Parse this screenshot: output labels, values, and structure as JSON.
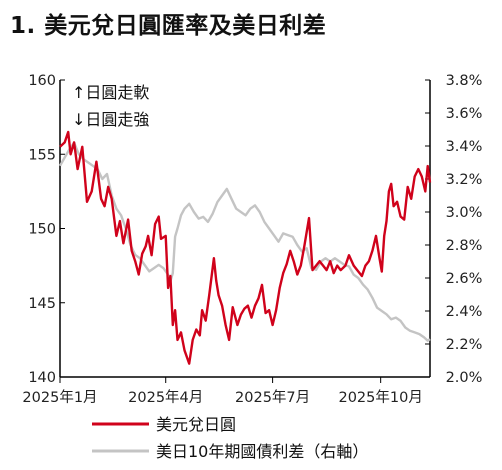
{
  "title": "1. 美元兌日圓匯率及美日利差",
  "chart_data": {
    "type": "line",
    "x_ticks": [
      "2025年1月",
      "2025年4月",
      "2025年7月",
      "2025年10月"
    ],
    "x_range": [
      "2025-01-01",
      "2025-11-12"
    ],
    "y_left": {
      "min": 140,
      "max": 160,
      "ticks": [
        "140",
        "145",
        "150",
        "155",
        "160"
      ]
    },
    "y_right": {
      "min": 2.0,
      "max": 3.8,
      "ticks": [
        "2.0%",
        "2.2%",
        "2.4%",
        "2.6%",
        "2.8%",
        "3.0%",
        "3.2%",
        "3.4%",
        "3.6%",
        "3.8%"
      ]
    },
    "annotations": [
      "↑日圓走軟",
      "↓日圓走強"
    ],
    "colors": {
      "usdjpy": "#d0021b",
      "spread": "#c4c4c4"
    },
    "series": [
      {
        "name": "美元兌日圓",
        "axis": "left",
        "points": [
          [
            "2025-01-01",
            155.5
          ],
          [
            "2025-01-05",
            155.8
          ],
          [
            "2025-01-08",
            156.5
          ],
          [
            "2025-01-10",
            155.0
          ],
          [
            "2025-01-13",
            155.8
          ],
          [
            "2025-01-16",
            154.0
          ],
          [
            "2025-01-20",
            155.5
          ],
          [
            "2025-01-24",
            151.8
          ],
          [
            "2025-01-28",
            152.5
          ],
          [
            "2025-02-01",
            154.5
          ],
          [
            "2025-02-05",
            152.0
          ],
          [
            "2025-02-08",
            151.5
          ],
          [
            "2025-02-11",
            152.8
          ],
          [
            "2025-02-14",
            152.0
          ],
          [
            "2025-02-18",
            149.5
          ],
          [
            "2025-02-21",
            150.5
          ],
          [
            "2025-02-24",
            149.0
          ],
          [
            "2025-02-28",
            150.6
          ],
          [
            "2025-03-03",
            148.5
          ],
          [
            "2025-03-06",
            147.8
          ],
          [
            "2025-03-09",
            146.9
          ],
          [
            "2025-03-12",
            148.3
          ],
          [
            "2025-03-15",
            148.8
          ],
          [
            "2025-03-17",
            149.5
          ],
          [
            "2025-03-20",
            148.2
          ],
          [
            "2025-03-23",
            150.3
          ],
          [
            "2025-03-26",
            150.8
          ],
          [
            "2025-03-28",
            149.3
          ],
          [
            "2025-04-01",
            149.5
          ],
          [
            "2025-04-03",
            146.0
          ],
          [
            "2025-04-05",
            146.8
          ],
          [
            "2025-04-07",
            143.5
          ],
          [
            "2025-04-09",
            144.5
          ],
          [
            "2025-04-11",
            142.5
          ],
          [
            "2025-04-14",
            143.0
          ],
          [
            "2025-04-17",
            141.8
          ],
          [
            "2025-04-21",
            140.9
          ],
          [
            "2025-04-24",
            142.5
          ],
          [
            "2025-04-27",
            143.2
          ],
          [
            "2025-04-30",
            142.8
          ],
          [
            "2025-05-02",
            144.5
          ],
          [
            "2025-05-05",
            143.8
          ],
          [
            "2025-05-08",
            145.5
          ],
          [
            "2025-05-12",
            148.0
          ],
          [
            "2025-05-14",
            146.5
          ],
          [
            "2025-05-16",
            145.5
          ],
          [
            "2025-05-19",
            144.8
          ],
          [
            "2025-05-22",
            143.5
          ],
          [
            "2025-05-25",
            142.5
          ],
          [
            "2025-05-28",
            144.7
          ],
          [
            "2025-06-01",
            143.5
          ],
          [
            "2025-06-04",
            144.2
          ],
          [
            "2025-06-07",
            144.6
          ],
          [
            "2025-06-10",
            144.8
          ],
          [
            "2025-06-13",
            144.0
          ],
          [
            "2025-06-16",
            144.8
          ],
          [
            "2025-06-19",
            145.3
          ],
          [
            "2025-06-22",
            146.2
          ],
          [
            "2025-06-25",
            144.3
          ],
          [
            "2025-06-28",
            144.5
          ],
          [
            "2025-07-01",
            143.5
          ],
          [
            "2025-07-04",
            144.5
          ],
          [
            "2025-07-07",
            146.0
          ],
          [
            "2025-07-10",
            147.0
          ],
          [
            "2025-07-13",
            147.6
          ],
          [
            "2025-07-16",
            148.5
          ],
          [
            "2025-07-19",
            147.8
          ],
          [
            "2025-07-22",
            146.9
          ],
          [
            "2025-07-25",
            147.5
          ],
          [
            "2025-07-28",
            148.8
          ],
          [
            "2025-08-01",
            150.7
          ],
          [
            "2025-08-04",
            147.2
          ],
          [
            "2025-08-07",
            147.5
          ],
          [
            "2025-08-10",
            147.8
          ],
          [
            "2025-08-13",
            147.5
          ],
          [
            "2025-08-16",
            147.2
          ],
          [
            "2025-08-19",
            147.8
          ],
          [
            "2025-08-22",
            147.0
          ],
          [
            "2025-08-25",
            147.5
          ],
          [
            "2025-08-28",
            147.2
          ],
          [
            "2025-09-01",
            147.5
          ],
          [
            "2025-09-04",
            148.2
          ],
          [
            "2025-09-08",
            147.5
          ],
          [
            "2025-09-11",
            147.2
          ],
          [
            "2025-09-15",
            146.8
          ],
          [
            "2025-09-18",
            147.5
          ],
          [
            "2025-09-21",
            147.8
          ],
          [
            "2025-09-24",
            148.5
          ],
          [
            "2025-09-27",
            149.5
          ],
          [
            "2025-09-30",
            148.0
          ],
          [
            "2025-10-02",
            147.1
          ],
          [
            "2025-10-04",
            149.5
          ],
          [
            "2025-10-06",
            150.5
          ],
          [
            "2025-10-08",
            152.5
          ],
          [
            "2025-10-10",
            153.0
          ],
          [
            "2025-10-12",
            151.5
          ],
          [
            "2025-10-15",
            151.8
          ],
          [
            "2025-10-18",
            150.8
          ],
          [
            "2025-10-21",
            150.6
          ],
          [
            "2025-10-24",
            152.8
          ],
          [
            "2025-10-27",
            152.0
          ],
          [
            "2025-10-30",
            153.5
          ],
          [
            "2025-11-02",
            154.0
          ],
          [
            "2025-11-05",
            153.5
          ],
          [
            "2025-11-08",
            152.5
          ],
          [
            "2025-11-10",
            154.2
          ],
          [
            "2025-11-12",
            153.1
          ]
        ]
      },
      {
        "name": "美日10年期國債利差（右軸）",
        "axis": "right",
        "points": [
          [
            "2025-01-01",
            3.28
          ],
          [
            "2025-01-05",
            3.33
          ],
          [
            "2025-01-09",
            3.38
          ],
          [
            "2025-01-13",
            3.42
          ],
          [
            "2025-01-17",
            3.35
          ],
          [
            "2025-01-21",
            3.32
          ],
          [
            "2025-01-25",
            3.3
          ],
          [
            "2025-01-29",
            3.28
          ],
          [
            "2025-02-02",
            3.26
          ],
          [
            "2025-02-06",
            3.2
          ],
          [
            "2025-02-10",
            3.23
          ],
          [
            "2025-02-14",
            3.1
          ],
          [
            "2025-02-18",
            3.02
          ],
          [
            "2025-02-22",
            2.98
          ],
          [
            "2025-02-26",
            2.9
          ],
          [
            "2025-03-02",
            2.8
          ],
          [
            "2025-03-06",
            2.74
          ],
          [
            "2025-03-10",
            2.72
          ],
          [
            "2025-03-14",
            2.68
          ],
          [
            "2025-03-18",
            2.64
          ],
          [
            "2025-03-22",
            2.66
          ],
          [
            "2025-03-26",
            2.68
          ],
          [
            "2025-03-30",
            2.66
          ],
          [
            "2025-04-03",
            2.62
          ],
          [
            "2025-04-05",
            2.58
          ],
          [
            "2025-04-07",
            2.63
          ],
          [
            "2025-04-09",
            2.85
          ],
          [
            "2025-04-11",
            2.9
          ],
          [
            "2025-04-14",
            2.98
          ],
          [
            "2025-04-17",
            3.02
          ],
          [
            "2025-04-21",
            3.05
          ],
          [
            "2025-04-25",
            3.0
          ],
          [
            "2025-04-29",
            2.96
          ],
          [
            "2025-05-03",
            2.97
          ],
          [
            "2025-05-07",
            2.94
          ],
          [
            "2025-05-11",
            2.99
          ],
          [
            "2025-05-15",
            3.06
          ],
          [
            "2025-05-19",
            3.1
          ],
          [
            "2025-05-23",
            3.14
          ],
          [
            "2025-05-27",
            3.08
          ],
          [
            "2025-05-31",
            3.02
          ],
          [
            "2025-06-04",
            3.0
          ],
          [
            "2025-06-08",
            2.98
          ],
          [
            "2025-06-12",
            3.02
          ],
          [
            "2025-06-16",
            3.04
          ],
          [
            "2025-06-20",
            3.0
          ],
          [
            "2025-06-24",
            2.94
          ],
          [
            "2025-06-28",
            2.9
          ],
          [
            "2025-07-02",
            2.86
          ],
          [
            "2025-07-06",
            2.82
          ],
          [
            "2025-07-10",
            2.87
          ],
          [
            "2025-07-14",
            2.86
          ],
          [
            "2025-07-18",
            2.85
          ],
          [
            "2025-07-22",
            2.8
          ],
          [
            "2025-07-26",
            2.76
          ],
          [
            "2025-07-30",
            2.78
          ],
          [
            "2025-08-03",
            2.66
          ],
          [
            "2025-08-07",
            2.65
          ],
          [
            "2025-08-11",
            2.7
          ],
          [
            "2025-08-15",
            2.72
          ],
          [
            "2025-08-19",
            2.7
          ],
          [
            "2025-08-23",
            2.72
          ],
          [
            "2025-08-27",
            2.7
          ],
          [
            "2025-08-31",
            2.68
          ],
          [
            "2025-09-04",
            2.67
          ],
          [
            "2025-09-08",
            2.62
          ],
          [
            "2025-09-12",
            2.6
          ],
          [
            "2025-09-16",
            2.56
          ],
          [
            "2025-09-20",
            2.53
          ],
          [
            "2025-09-24",
            2.48
          ],
          [
            "2025-09-28",
            2.42
          ],
          [
            "2025-10-02",
            2.4
          ],
          [
            "2025-10-06",
            2.38
          ],
          [
            "2025-10-10",
            2.35
          ],
          [
            "2025-10-14",
            2.36
          ],
          [
            "2025-10-18",
            2.34
          ],
          [
            "2025-10-22",
            2.3
          ],
          [
            "2025-10-26",
            2.28
          ],
          [
            "2025-10-30",
            2.27
          ],
          [
            "2025-11-03",
            2.26
          ],
          [
            "2025-11-07",
            2.24
          ],
          [
            "2025-11-10",
            2.22
          ],
          [
            "2025-11-12",
            2.23
          ]
        ]
      }
    ]
  }
}
